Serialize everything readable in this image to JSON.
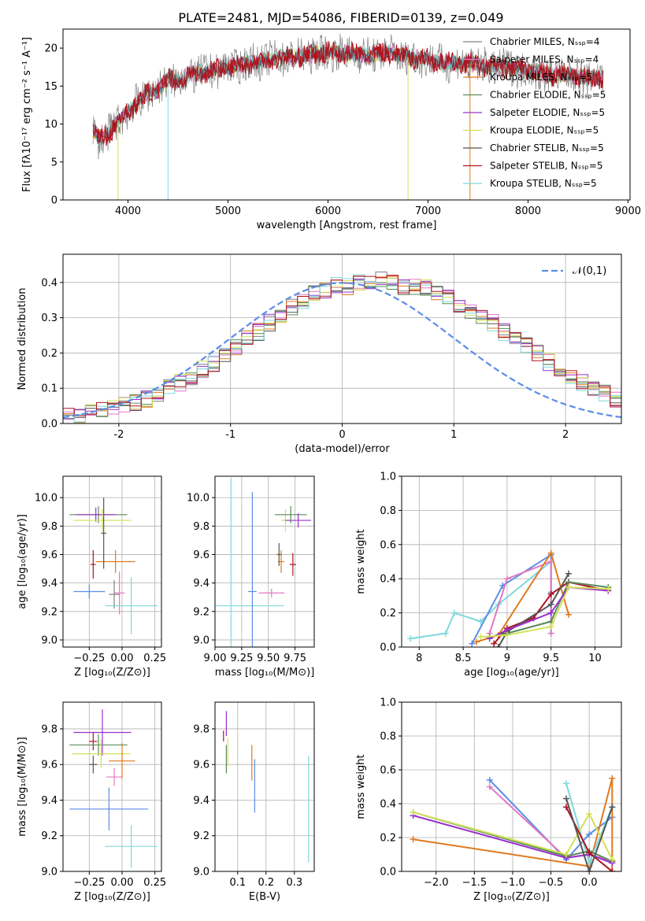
{
  "figure": {
    "title": "PLATE=2481, MJD=54086, FIBERID=0139, z=0.049"
  },
  "colors": {
    "chabrier_miles": "#808080",
    "salpeter_miles": "#e377c2",
    "kroupa_miles": "#e07a1f",
    "chabrier_elodie": "#5a8a5a",
    "salpeter_elodie": "#9932cc",
    "kroupa_elodie": "#d4e157",
    "chabrier_stelib": "#555555",
    "salpeter_stelib": "#b0131e",
    "kroupa_stelib": "#7fd8dc",
    "normal": "#5b8ee6",
    "blue_fit": "#5b8ee6"
  },
  "chart_data": [
    {
      "type": "line",
      "panel": "spectrum",
      "title": "PLATE=2481, MJD=54086, FIBERID=0139, z=0.049",
      "xlabel": "wavelength [Angstrom, rest frame]",
      "ylabel": "Flux [fλ10⁻¹⁷ erg cm⁻² s⁻¹ A⁻¹]",
      "xlim": [
        3350,
        9020
      ],
      "ylim": [
        0,
        22.5
      ],
      "xticks": [
        4000,
        5000,
        6000,
        7000,
        8000,
        9000
      ],
      "yticks": [
        0,
        5,
        10,
        15,
        20
      ],
      "grid": false,
      "legend_position": "top-right",
      "legend": [
        "Chabrier MILES, N_SSP=4",
        "Salpeter MILES, N_SSP=4",
        "Kroupa MILES, N_SSP=5",
        "Chabrier ELODIE, N_SSP=5",
        "Salpeter ELODIE, N_SSP=5",
        "Kroupa ELODIE, N_SSP=5",
        "Chabrier STELIB, N_SSP=5",
        "Salpeter STELIB, N_SSP=5",
        "Kroupa STELIB, N_SSP=5"
      ],
      "x": [
        3650,
        3700,
        3800,
        3900,
        4000,
        4100,
        4200,
        4300,
        4400,
        4500,
        4600,
        4700,
        4800,
        4900,
        5000,
        5200,
        5400,
        5600,
        5800,
        6000,
        6200,
        6400,
        6600,
        6800,
        7000,
        7200,
        7400,
        7600,
        7800,
        8000,
        8200,
        8400,
        8600,
        8750
      ],
      "y": [
        9.5,
        8.0,
        8.5,
        10.5,
        11.5,
        13.0,
        14.0,
        14.5,
        16.0,
        15.5,
        16.5,
        16.5,
        17.0,
        17.2,
        17.5,
        18.0,
        18.5,
        18.8,
        19.0,
        19.5,
        19.3,
        19.0,
        19.5,
        18.8,
        18.5,
        18.0,
        18.0,
        17.5,
        17.5,
        17.0,
        16.5,
        16.5,
        16.0,
        16.2
      ]
    },
    {
      "type": "line",
      "panel": "residual-histogram",
      "xlabel": "(data-model)/error",
      "ylabel": "Normed distribution",
      "xlim": [
        -2.5,
        2.5
      ],
      "ylim": [
        0,
        0.48
      ],
      "xticks": [
        -2,
        -1,
        0,
        1,
        2
      ],
      "yticks": [
        0.0,
        0.1,
        0.2,
        0.3,
        0.4
      ],
      "grid": true,
      "legend_position": "top-right",
      "legend": [
        "𝒩(0,1)"
      ],
      "bin_width": 0.1,
      "bin_start": -2.5,
      "values": [
        0.02,
        0.025,
        0.03,
        0.035,
        0.045,
        0.05,
        0.06,
        0.07,
        0.085,
        0.1,
        0.115,
        0.13,
        0.155,
        0.17,
        0.19,
        0.215,
        0.24,
        0.26,
        0.285,
        0.31,
        0.33,
        0.345,
        0.37,
        0.38,
        0.39,
        0.39,
        0.4,
        0.4,
        0.41,
        0.4,
        0.39,
        0.39,
        0.385,
        0.37,
        0.355,
        0.34,
        0.32,
        0.3,
        0.285,
        0.26,
        0.24,
        0.22,
        0.2,
        0.175,
        0.155,
        0.135,
        0.115,
        0.1,
        0.085,
        0.07
      ]
    },
    {
      "type": "scatter",
      "panel": "age-vs-Z",
      "xlabel": "Z [log₁₀(Z/Z⊙)]",
      "ylabel": "age  [log₁₀(age/yr)]",
      "xlim": [
        -0.45,
        0.3
      ],
      "ylim": [
        8.95,
        10.15
      ],
      "xticks": [
        -0.25,
        0.0,
        0.25
      ],
      "xticklabels": [
        "−0.25",
        "0.00",
        "0.25"
      ],
      "yticks": [
        9.0,
        9.2,
        9.4,
        9.6,
        9.8,
        10.0
      ],
      "grid": true,
      "points": [
        {
          "model": "salpeter_miles",
          "x": -0.02,
          "y": 9.33,
          "xerr": 0.04,
          "yerr": 0.15
        },
        {
          "model": "chabrier_miles",
          "x": -0.06,
          "y": 9.32,
          "xerr": 0.04,
          "yerr": 0.1
        },
        {
          "model": "kroupa_miles",
          "x": -0.05,
          "y": 9.55,
          "xerr": 0.15,
          "yerr": 0.08
        },
        {
          "model": "chabrier_elodie",
          "x": -0.18,
          "y": 9.88,
          "xerr": 0.22,
          "yerr": 0.06
        },
        {
          "model": "salpeter_elodie",
          "x": -0.2,
          "y": 9.88,
          "xerr": 0.15,
          "yerr": 0.05
        },
        {
          "model": "kroupa_elodie",
          "x": -0.15,
          "y": 9.84,
          "xerr": 0.22,
          "yerr": 0.08
        },
        {
          "model": "chabrier_stelib",
          "x": -0.14,
          "y": 9.75,
          "xerr": 0.02,
          "yerr": 0.25
        },
        {
          "model": "salpeter_stelib",
          "x": -0.22,
          "y": 9.53,
          "xerr": 0.02,
          "yerr": 0.1
        },
        {
          "model": "kroupa_stelib",
          "x": 0.07,
          "y": 9.24,
          "xerr": 0.2,
          "yerr": 0.2
        },
        {
          "model": "blue_fit",
          "x": -0.25,
          "y": 9.34,
          "xerr": 0.12,
          "yerr": 0.05
        }
      ]
    },
    {
      "type": "scatter",
      "panel": "age-vs-mass",
      "xlabel": "mass [log₁₀(M/M⊙)]",
      "ylabel": "",
      "xlim": [
        9.0,
        9.93
      ],
      "ylim": [
        8.95,
        10.15
      ],
      "xticks": [
        9.0,
        9.25,
        9.5,
        9.75
      ],
      "xticklabels": [
        "9.00",
        "9.25",
        "9.50",
        "9.75"
      ],
      "yticks": [
        9.0,
        9.2,
        9.4,
        9.6,
        9.8,
        10.0
      ],
      "grid": true,
      "points": [
        {
          "model": "kroupa_stelib",
          "x": 9.15,
          "y": 9.24,
          "xerr": 0.5,
          "yerr": 0.9
        },
        {
          "model": "blue_fit",
          "x": 9.35,
          "y": 9.34,
          "xerr": 0.04,
          "yerr": 0.7
        },
        {
          "model": "kroupa_miles",
          "x": 9.62,
          "y": 9.55,
          "xerr": 0.03,
          "yerr": 0.08
        },
        {
          "model": "salpeter_miles",
          "x": 9.53,
          "y": 9.33,
          "xerr": 0.12,
          "yerr": 0.03
        },
        {
          "model": "kroupa_elodie",
          "x": 9.66,
          "y": 9.84,
          "xerr": 0.04,
          "yerr": 0.08
        },
        {
          "model": "chabrier_elodie",
          "x": 9.71,
          "y": 9.88,
          "xerr": 0.15,
          "yerr": 0.06
        },
        {
          "model": "salpeter_elodie",
          "x": 9.78,
          "y": 9.84,
          "xerr": 0.12,
          "yerr": 0.05
        },
        {
          "model": "salpeter_stelib",
          "x": 9.73,
          "y": 9.53,
          "xerr": 0.03,
          "yerr": 0.08
        },
        {
          "model": "chabrier_stelib",
          "x": 9.6,
          "y": 9.6,
          "xerr": 0.02,
          "yerr": 0.08
        }
      ]
    },
    {
      "type": "line",
      "panel": "mass-weight-vs-age",
      "xlabel": "age  [log₁₀(age/yr)]",
      "ylabel": "mass weight",
      "xlim": [
        7.8,
        10.3
      ],
      "ylim": [
        0,
        1.0
      ],
      "xticks": [
        8.0,
        8.5,
        9.0,
        9.5,
        10.0
      ],
      "yticks": [
        0.0,
        0.2,
        0.4,
        0.6,
        0.8,
        1.0
      ],
      "grid": true,
      "series": [
        {
          "model": "kroupa_stelib",
          "x": [
            7.9,
            8.3,
            8.4,
            8.7,
            8.9,
            9.5,
            9.5
          ],
          "y": [
            0.05,
            0.08,
            0.2,
            0.15,
            0.25,
            0.5,
            0.08
          ]
        },
        {
          "model": "blue_fit",
          "x": [
            8.6,
            8.95,
            9.5,
            9.5
          ],
          "y": [
            0.02,
            0.36,
            0.54,
            0.32
          ]
        },
        {
          "model": "salpeter_miles",
          "x": [
            8.8,
            9.0,
            9.5,
            9.5
          ],
          "y": [
            0.08,
            0.4,
            0.5,
            0.08
          ]
        },
        {
          "model": "kroupa_miles",
          "x": [
            8.65,
            8.9,
            9.5,
            9.7
          ],
          "y": [
            0.03,
            0.07,
            0.55,
            0.19
          ]
        },
        {
          "model": "salpeter_stelib",
          "x": [
            8.85,
            9.0,
            9.3,
            9.5,
            9.7,
            10.15
          ],
          "y": [
            0.02,
            0.11,
            0.17,
            0.31,
            0.38,
            0.33
          ]
        },
        {
          "model": "chabrier_stelib",
          "x": [
            8.9,
            9.0,
            9.5,
            9.7
          ],
          "y": [
            0.0,
            0.09,
            0.25,
            0.43
          ]
        },
        {
          "model": "chabrier_elodie",
          "x": [
            8.8,
            9.0,
            9.5,
            9.7,
            10.15
          ],
          "y": [
            0.06,
            0.08,
            0.15,
            0.38,
            0.35
          ]
        },
        {
          "model": "salpeter_elodie",
          "x": [
            8.8,
            9.0,
            9.5,
            9.7,
            10.15
          ],
          "y": [
            0.05,
            0.1,
            0.2,
            0.35,
            0.33
          ]
        },
        {
          "model": "kroupa_elodie",
          "x": [
            8.7,
            9.0,
            9.5,
            9.7,
            10.15
          ],
          "y": [
            0.06,
            0.07,
            0.12,
            0.35,
            0.34
          ]
        }
      ]
    },
    {
      "type": "scatter",
      "panel": "mass-vs-Z",
      "xlabel": "Z [log₁₀(Z/Z⊙)]",
      "ylabel": "mass [log₁₀(M/M⊙)]",
      "xlim": [
        -0.45,
        0.3
      ],
      "ylim": [
        9.0,
        9.95
      ],
      "xticks": [
        -0.25,
        0.0,
        0.25
      ],
      "xticklabels": [
        "−0.25",
        "0.00",
        "0.25"
      ],
      "yticks": [
        9.0,
        9.2,
        9.4,
        9.6,
        9.8
      ],
      "grid": true,
      "points": [
        {
          "model": "salpeter_elodie",
          "x": -0.15,
          "y": 9.78,
          "xerr": 0.22,
          "yerr": 0.13
        },
        {
          "model": "salpeter_stelib",
          "x": -0.22,
          "y": 9.73,
          "xerr": 0.03,
          "yerr": 0.05
        },
        {
          "model": "chabrier_elodie",
          "x": -0.18,
          "y": 9.71,
          "xerr": 0.22,
          "yerr": 0.06
        },
        {
          "model": "kroupa_elodie",
          "x": -0.16,
          "y": 9.66,
          "xerr": 0.22,
          "yerr": 0.08
        },
        {
          "model": "kroupa_miles",
          "x": 0.0,
          "y": 9.62,
          "xerr": 0.1,
          "yerr": 0.1
        },
        {
          "model": "chabrier_stelib",
          "x": -0.22,
          "y": 9.6,
          "xerr": 0.03,
          "yerr": 0.05
        },
        {
          "model": "salpeter_miles",
          "x": -0.06,
          "y": 9.53,
          "xerr": 0.06,
          "yerr": 0.05
        },
        {
          "model": "blue_fit",
          "x": -0.1,
          "y": 9.35,
          "xerr": 0.3,
          "yerr": 0.12
        },
        {
          "model": "kroupa_stelib",
          "x": 0.07,
          "y": 9.14,
          "xerr": 0.2,
          "yerr": 0.12
        }
      ]
    },
    {
      "type": "scatter",
      "panel": "mass-vs-EBV",
      "xlabel": "E(B-V)",
      "ylabel": "",
      "xlim": [
        0.02,
        0.37
      ],
      "ylim": [
        9.0,
        9.95
      ],
      "xticks": [
        0.1,
        0.2,
        0.3
      ],
      "xticklabels": [
        "0.1",
        "0.2",
        "0.3"
      ],
      "yticks": [
        9.0,
        9.2,
        9.4,
        9.6,
        9.8
      ],
      "grid": true,
      "points": [
        {
          "model": "salpeter_elodie",
          "x": 0.06,
          "y": 9.83,
          "xerr": 0.0,
          "yerr": 0.07
        },
        {
          "model": "salpeter_stelib",
          "x": 0.05,
          "y": 9.76,
          "xerr": 0.0,
          "yerr": 0.03
        },
        {
          "model": "chabrier_elodie",
          "x": 0.06,
          "y": 9.63,
          "xerr": 0.0,
          "yerr": 0.08
        },
        {
          "model": "kroupa_elodie",
          "x": 0.065,
          "y": 9.67,
          "xerr": 0.0,
          "yerr": 0.08
        },
        {
          "model": "kroupa_miles",
          "x": 0.15,
          "y": 9.61,
          "xerr": 0.0,
          "yerr": 0.1
        },
        {
          "model": "blue_fit",
          "x": 0.16,
          "y": 9.48,
          "xerr": 0.0,
          "yerr": 0.15
        },
        {
          "model": "kroupa_stelib",
          "x": 0.35,
          "y": 9.35,
          "xerr": 0.0,
          "yerr": 0.3
        }
      ]
    },
    {
      "type": "line",
      "panel": "mass-weight-vs-Z",
      "xlabel": "Z [log₁₀(Z/Z⊙)]",
      "ylabel": "mass weight",
      "xlim": [
        -2.45,
        0.42
      ],
      "ylim": [
        0,
        1.0
      ],
      "xticks": [
        -2.0,
        -1.5,
        -1.0,
        -0.5,
        0.0
      ],
      "xticklabels": [
        "−2.0",
        "−1.5",
        "−1.0",
        "−0.5",
        "0.0"
      ],
      "yticks": [
        0.0,
        0.2,
        0.4,
        0.6,
        0.8,
        1.0
      ],
      "grid": true,
      "series": [
        {
          "model": "blue_fit",
          "x": [
            -1.3,
            -0.3,
            0.0,
            0.3
          ],
          "y": [
            0.54,
            0.07,
            0.22,
            0.32
          ]
        },
        {
          "model": "salpeter_miles",
          "x": [
            -1.3,
            -0.3,
            0.0,
            0.3
          ],
          "y": [
            0.5,
            0.08,
            0.1,
            0.06
          ]
        },
        {
          "model": "kroupa_miles",
          "x": [
            -2.3,
            0.0,
            0.3,
            0.3
          ],
          "y": [
            0.19,
            0.03,
            0.55,
            0.0
          ]
        },
        {
          "model": "kroupa_stelib",
          "x": [
            -0.3,
            0.0,
            0.3
          ],
          "y": [
            0.52,
            0.05,
            0.38
          ]
        },
        {
          "model": "chabrier_elodie",
          "x": [
            -2.3,
            -0.3,
            0.0,
            0.3
          ],
          "y": [
            0.35,
            0.09,
            0.12,
            0.06
          ]
        },
        {
          "model": "salpeter_elodie",
          "x": [
            -2.3,
            -0.3,
            0.0,
            0.3
          ],
          "y": [
            0.33,
            0.08,
            0.1,
            0.05
          ]
        },
        {
          "model": "kroupa_elodie",
          "x": [
            -2.3,
            -0.3,
            0.0,
            0.3
          ],
          "y": [
            0.35,
            0.1,
            0.34,
            0.07
          ]
        },
        {
          "model": "salpeter_stelib",
          "x": [
            -0.3,
            0.0,
            0.3
          ],
          "y": [
            0.38,
            0.11,
            0.0
          ]
        },
        {
          "model": "chabrier_stelib",
          "x": [
            -0.3,
            0.0,
            0.3
          ],
          "y": [
            0.43,
            0.0,
            0.38
          ]
        }
      ]
    }
  ]
}
